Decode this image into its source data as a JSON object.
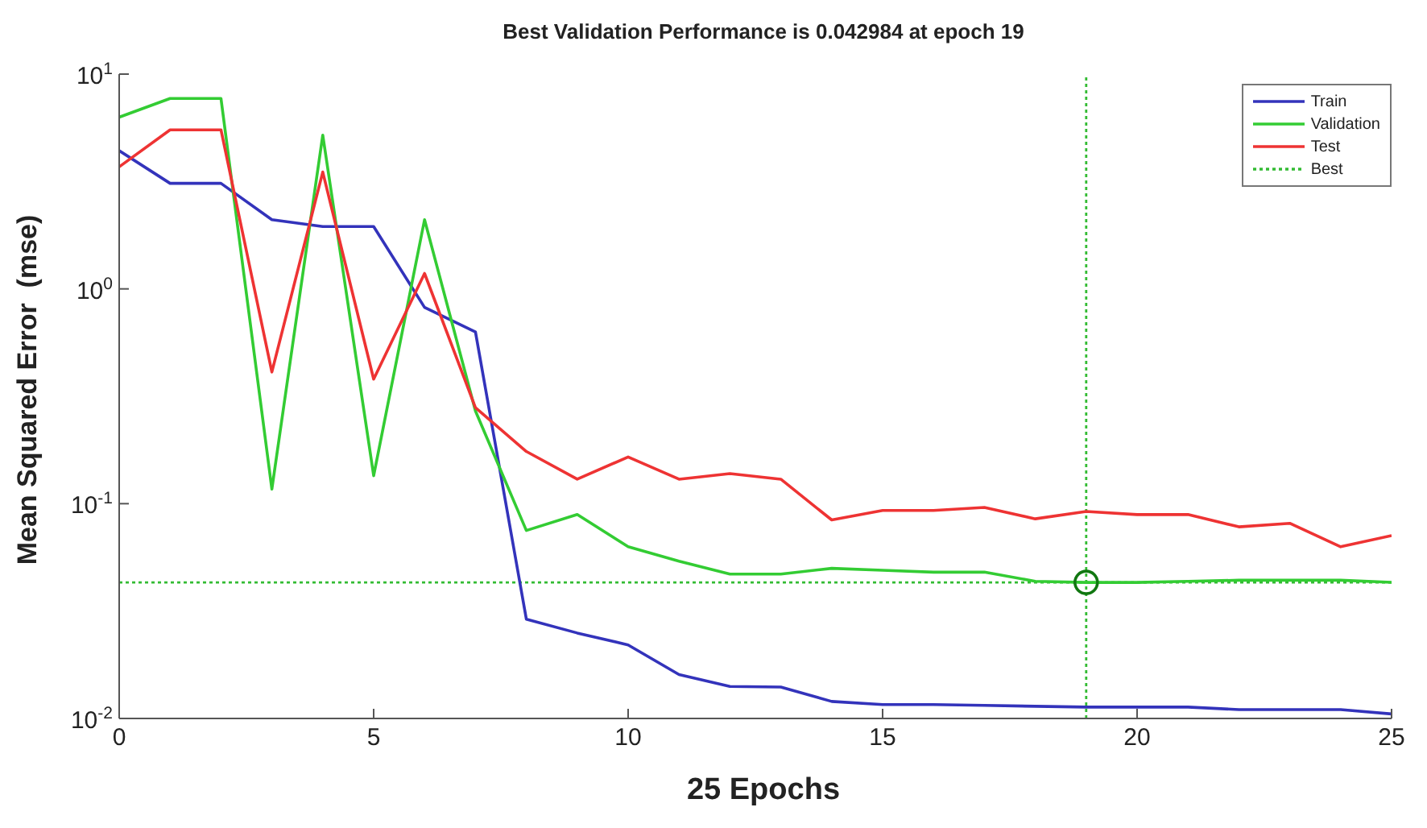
{
  "chart_data": {
    "type": "line",
    "title": "Best Validation Performance is 0.042984 at epoch 19",
    "xlabel": "25 Epochs",
    "ylabel": "Mean Squared Error  (mse)",
    "x": [
      0,
      1,
      2,
      3,
      4,
      5,
      6,
      7,
      8,
      9,
      10,
      11,
      12,
      13,
      14,
      15,
      16,
      17,
      18,
      19,
      20,
      21,
      22,
      23,
      24,
      25
    ],
    "series": [
      {
        "name": "Train",
        "color": "#3333bb",
        "values": [
          4.4,
          3.1,
          3.1,
          2.1,
          1.95,
          1.95,
          0.82,
          0.63,
          0.029,
          0.025,
          0.022,
          0.016,
          0.0141,
          0.014,
          0.012,
          0.0116,
          0.0116,
          0.0115,
          0.0114,
          0.0113,
          0.0113,
          0.0113,
          0.011,
          0.011,
          0.011,
          0.0105
        ]
      },
      {
        "name": "Validation",
        "color": "#33cc33",
        "values": [
          6.3,
          7.7,
          7.7,
          0.117,
          5.2,
          0.135,
          2.1,
          0.27,
          0.075,
          0.089,
          0.063,
          0.054,
          0.047,
          0.047,
          0.05,
          0.049,
          0.048,
          0.048,
          0.0435,
          0.042984,
          0.043,
          0.0435,
          0.044,
          0.044,
          0.044,
          0.043
        ]
      },
      {
        "name": "Test",
        "color": "#ee3333",
        "values": [
          3.7,
          5.5,
          5.5,
          0.41,
          3.5,
          0.38,
          1.18,
          0.28,
          0.175,
          0.13,
          0.165,
          0.13,
          0.138,
          0.13,
          0.084,
          0.093,
          0.093,
          0.096,
          0.085,
          0.092,
          0.089,
          0.089,
          0.078,
          0.081,
          0.063,
          0.071
        ]
      },
      {
        "type": "scatter",
        "color": "#117711",
        "marker": "circle",
        "x": [
          19
        ],
        "values": [
          0.042984
        ]
      }
    ],
    "ref_lines": [
      {
        "axis": "x",
        "value": 19,
        "color": "#33bb33",
        "line_style": "dotted"
      },
      {
        "axis": "y",
        "value": 0.042984,
        "label": "Best",
        "color": "#33bb33",
        "line_style": "dotted"
      }
    ],
    "xlim": [
      0,
      25
    ],
    "xticks": [
      0,
      5,
      10,
      15,
      20,
      25
    ],
    "ylim": [
      0.01,
      10
    ],
    "yticks": [
      {
        "value": 0.01,
        "label": "10$^{-2}$"
      },
      {
        "value": 0.1,
        "label": "10$^{-1}$"
      },
      {
        "value": 1,
        "label": "10$^{0}$"
      },
      {
        "value": 10,
        "label": "10$^{1}$"
      }
    ],
    "log": "y",
    "grid": false,
    "legend": "top right",
    "marker": "none",
    "line_style": "solid"
  }
}
